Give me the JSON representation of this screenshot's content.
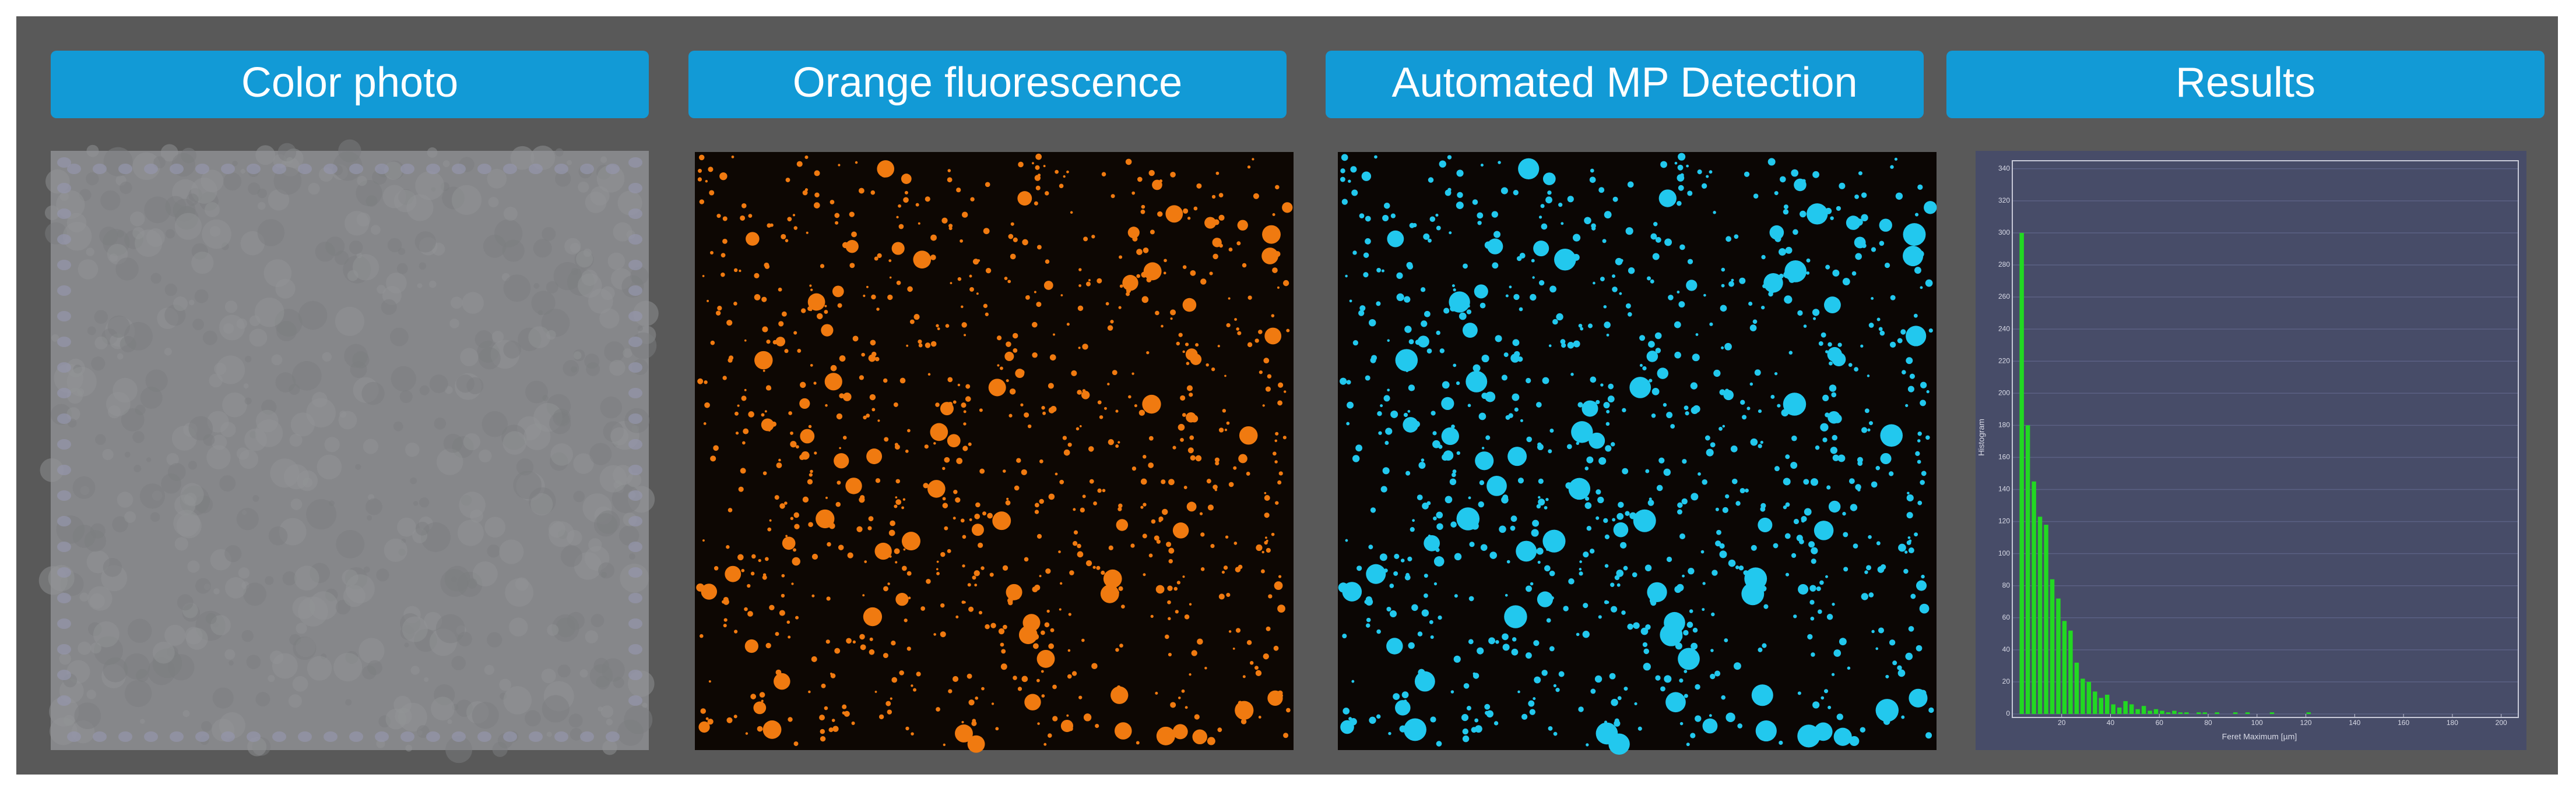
{
  "panels": [
    {
      "title": "Color photo"
    },
    {
      "title": "Orange fluorescence"
    },
    {
      "title": "Automated MP Detection"
    },
    {
      "title": "Results"
    }
  ],
  "chart_data": {
    "type": "histogram",
    "y_label": "Histogram",
    "x_label": "Feret Maximum [µm]",
    "color": "#22d822",
    "bins": [
      2.5,
      5,
      7.5,
      10,
      12.5,
      15,
      17.5,
      20,
      22.5,
      25,
      27.5,
      30,
      32.5,
      35,
      37.5,
      40,
      42.5,
      45,
      47.5,
      50,
      52.5,
      55,
      57.5,
      60,
      62.5,
      65,
      67.5,
      70,
      72.5,
      75,
      77.5,
      80,
      82.5,
      85,
      87.5,
      90,
      92.5,
      95,
      97.5,
      100,
      102.5,
      105,
      107.5,
      110,
      112.5,
      115,
      117.5,
      120,
      122.5,
      125,
      127.5,
      130
    ],
    "values": [
      300,
      180,
      145,
      123,
      118,
      84,
      72,
      58,
      52,
      32,
      22,
      20,
      14,
      10,
      12,
      6,
      4,
      8,
      6,
      3,
      5,
      2,
      3,
      2,
      1,
      2,
      1,
      1,
      0,
      1,
      1,
      0,
      1,
      0,
      0,
      1,
      0,
      1,
      0,
      0,
      0,
      1,
      0,
      0,
      0,
      0,
      0,
      1,
      0,
      0,
      0
    ],
    "xlim": [
      -5,
      207
    ],
    "ylim": [
      0,
      345
    ],
    "xticks": [
      20,
      40,
      60,
      80,
      100,
      120,
      140,
      160,
      180,
      200
    ],
    "yticks": [
      0,
      20,
      40,
      60,
      80,
      100,
      120,
      140,
      160,
      180,
      200,
      220,
      240,
      260,
      280,
      300,
      320,
      340
    ],
    "grid": true
  }
}
